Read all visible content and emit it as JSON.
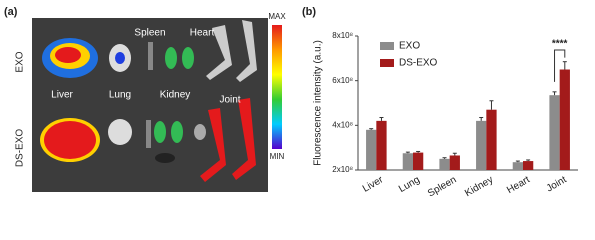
{
  "image_panel": {
    "label": "(a)",
    "rows": [
      "EXO",
      "DS-EXO"
    ],
    "organs": [
      "Liver",
      "Lung",
      "Spleen",
      "Kidney",
      "Heart",
      "Joint"
    ],
    "scale_max": "MAX",
    "scale_min": "MIN"
  },
  "chart_data": {
    "type": "bar",
    "label": "(b)",
    "y_label": "Fluorescence intensity (a.u.)",
    "categories": [
      "Liver",
      "Lung",
      "Spleen",
      "Kidney",
      "Heart",
      "Joint"
    ],
    "series": [
      {
        "name": "EXO",
        "color": "#8c8c8c",
        "values": [
          380000000,
          275000000,
          250000000,
          420000000,
          235000000,
          535000000
        ],
        "errors": [
          5000000,
          5000000,
          5000000,
          15000000,
          5000000,
          15000000
        ]
      },
      {
        "name": "DS-EXO",
        "color": "#a31b1b",
        "values": [
          420000000,
          278000000,
          265000000,
          470000000,
          240000000,
          650000000
        ],
        "errors": [
          15000000,
          5000000,
          10000000,
          40000000,
          5000000,
          35000000
        ]
      }
    ],
    "ylim": [
      200000000,
      800000000
    ],
    "yticks": [
      {
        "value": 200000000,
        "label": "2x10⁸"
      },
      {
        "value": 400000000,
        "label": "4x10⁸"
      },
      {
        "value": 600000000,
        "label": "6x10⁸"
      },
      {
        "value": 800000000,
        "label": "8x10⁸"
      }
    ],
    "annotation": "****",
    "legend": "top-left"
  }
}
